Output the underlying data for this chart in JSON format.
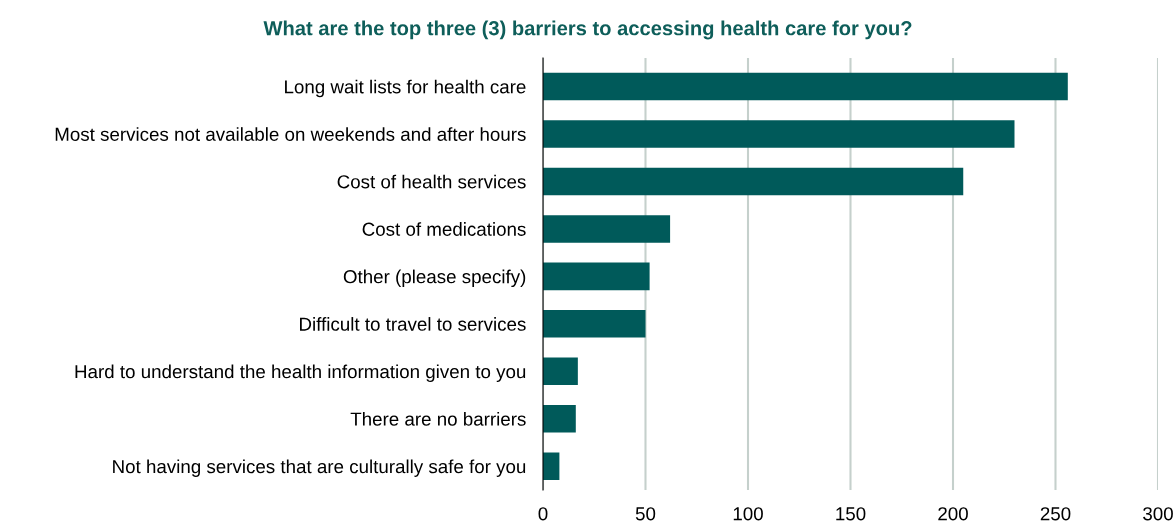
{
  "chart_data": {
    "type": "bar",
    "orientation": "horizontal",
    "title": "What are the top three (3) barriers to accessing health care for you?",
    "categories": [
      "Long wait lists for health care",
      "Most services not available on weekends and after hours",
      "Cost of health services",
      "Cost of medications",
      "Other (please specify)",
      "Difficult to travel to services",
      "Hard to understand the health information given to you",
      "There are no barriers",
      "Not having services that are culturally safe for you"
    ],
    "values": [
      256,
      230,
      205,
      62,
      52,
      50,
      17,
      16,
      8
    ],
    "color": "#005a5a",
    "xlim": [
      0,
      300
    ],
    "xticks": [
      0,
      50,
      100,
      150,
      200,
      250,
      300
    ],
    "grid": "x"
  }
}
